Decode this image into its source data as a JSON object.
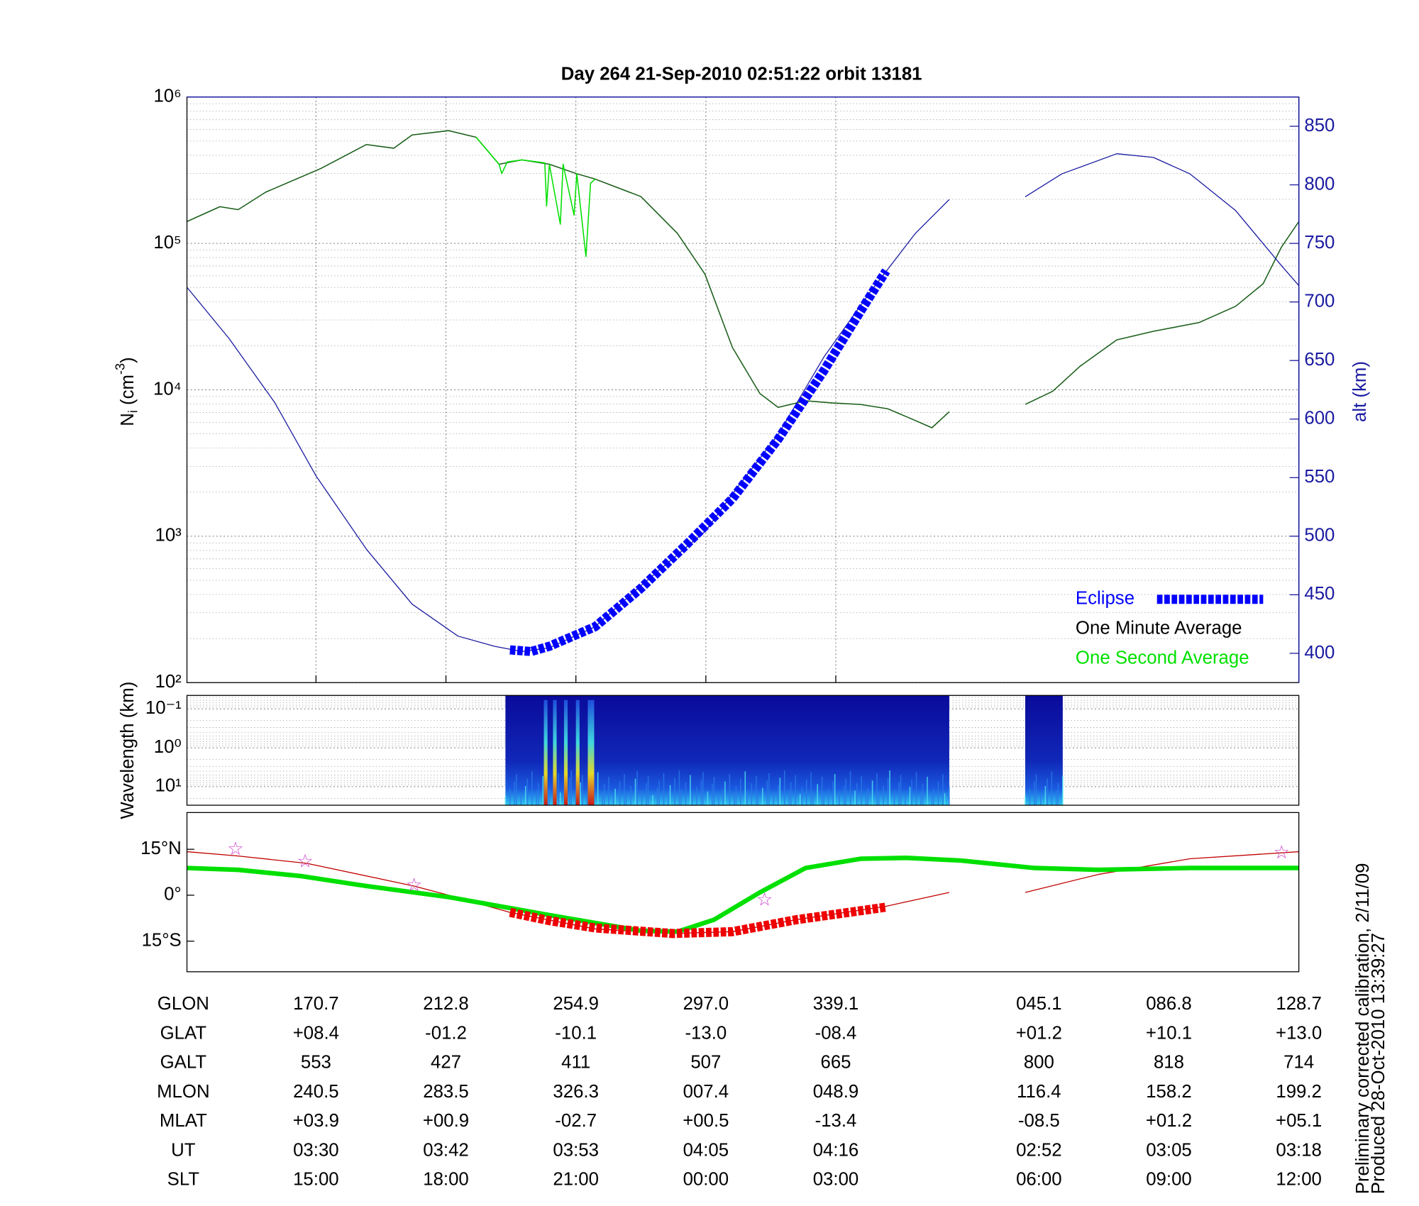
{
  "title": "Day 264  21-Sep-2010 02:51:22   orbit 13181",
  "chart_data": [
    {
      "type": "line",
      "ylabel": {
        "base": "N",
        "sub": "i",
        "unit": "(cm",
        "sup": "-3",
        "end": ")"
      },
      "y2label": "alt (km)",
      "xlim": [
        0,
        1215
      ],
      "xticks": [
        141,
        283,
        425,
        567,
        709
      ],
      "ylim": [
        100,
        1000000
      ],
      "ylog": true,
      "yticks": [
        {
          "value": 100,
          "label": "10²"
        },
        {
          "value": 1000,
          "label": "10³"
        },
        {
          "value": 10000,
          "label": "10⁴"
        },
        {
          "value": 100000,
          "label": "10⁵"
        },
        {
          "value": 1000000,
          "label": "10⁶"
        }
      ],
      "y2lim": [
        375,
        875
      ],
      "y2ticks": [
        400,
        450,
        500,
        550,
        600,
        650,
        700,
        750,
        800,
        850
      ],
      "grid": true,
      "legend": "lower right",
      "series": [
        {
          "name": "Eclipse",
          "color": "#0000ff",
          "legend_color": "#0000ff",
          "legend_sample": true,
          "axis": "y2",
          "width": 10,
          "dash": "6 2",
          "x": [
            353,
            376,
            396,
            446,
            496,
            546,
            596,
            646,
            696,
            736,
            764
          ],
          "values": [
            403,
            401.6,
            406,
            422.7,
            455.5,
            493,
            532,
            582.8,
            641.4,
            692,
            726.6
          ]
        },
        {
          "name": "One Minute Average",
          "color": "#1a5e1a",
          "legend_color": "#000000",
          "width": 1.2,
          "x": [
            0,
            36,
            56,
            86,
            146,
            196,
            226,
            246,
            286,
            316,
            341,
            366,
            396,
            426,
            446,
            496,
            536,
            566,
            596,
            626,
            646,
            676,
            706,
            736,
            766,
            796,
            814,
            833,
            875,
            916,
            946,
            976,
            1016,
            1056,
            1106,
            1146,
            1176,
            1196,
            1215
          ],
          "values": [
            141000,
            178000,
            170000,
            224000,
            324000,
            473000,
            447000,
            550000,
            589000,
            531000,
            347000,
            372000,
            347000,
            299000,
            275000,
            209000,
            117000,
            61700,
            19500,
            9440,
            7590,
            8410,
            8130,
            7940,
            7410,
            6170,
            5500,
            7080,
            null,
            7940,
            9770,
            14500,
            21900,
            25100,
            28800,
            37200,
            53100,
            94400,
            141000
          ]
        },
        {
          "name": "One Second Average",
          "color": "#00e000",
          "legend_color": "#00e000",
          "width": 1.2,
          "x": [
            316,
            341,
            344,
            350,
            366,
            391,
            393,
            396,
            408,
            411,
            423,
            426,
            436,
            441,
            446
          ],
          "values": [
            531000,
            347000,
            300000,
            360000,
            372000,
            355000,
            180000,
            347000,
            135000,
            347000,
            156000,
            299000,
            81300,
            257000,
            275000
          ]
        },
        {
          "color": "#1a1aa0",
          "axis": "y2",
          "width": 1,
          "x": [
            0,
            46,
            96,
            141,
            196,
            246,
            296,
            336,
            366,
            396,
            446,
            496,
            567,
            596,
            646,
            696,
            746,
            796,
            833,
            875,
            916,
            956,
            1016,
            1056,
            1096,
            1146,
            1196,
            1215
          ],
          "values": [
            712.5,
            668.8,
            614,
            551.6,
            489,
            442,
            414.8,
            406,
            401.6,
            404.7,
            422.7,
            457.8,
            504.7,
            536,
            586.7,
            653,
            707.8,
            758.6,
            787.5,
            null,
            789.8,
            809.4,
            826.6,
            823.4,
            809.4,
            778,
            731,
            714
          ]
        }
      ]
    },
    {
      "type": "spectrogram",
      "ylabel": "Wavelength (km)",
      "xlim": [
        0,
        1215
      ],
      "ylim": [
        0.045,
        30
      ],
      "ylog": true,
      "yinverted": true,
      "grid": true,
      "yticks": [
        {
          "value": 0.1,
          "label": "10⁻¹"
        },
        {
          "value": 1,
          "label": "10⁰"
        },
        {
          "value": 10,
          "label": "10¹"
        }
      ],
      "coverage": [
        [
          348,
          833
        ],
        [
          916,
          957
        ]
      ]
    },
    {
      "type": "line",
      "xlim": [
        0,
        1215
      ],
      "ylim": [
        -25,
        27
      ],
      "yticks": [
        {
          "value": 15,
          "label": "15°N"
        },
        {
          "value": 0,
          "label": "0°"
        },
        {
          "value": -15,
          "label": "15°S"
        }
      ],
      "series": [
        {
          "color": "#c00000",
          "width": 1,
          "x": [
            0,
            56,
            131,
            248,
            286,
            353,
            446,
            531,
            596,
            666,
            764,
            833,
            875,
            916,
            996,
            1096,
            1215
          ],
          "values": [
            14.2,
            12.8,
            10.4,
            3,
            0,
            -5.6,
            -11,
            -12.5,
            -11.9,
            -8,
            -3.6,
            0.9,
            null,
            0.9,
            6.8,
            11.9,
            14.2
          ]
        },
        {
          "color": "#00e000",
          "width": 5,
          "x": [
            0,
            56,
            126,
            196,
            286,
            396,
            496,
            536,
            576,
            626,
            676,
            736,
            786,
            846,
            926,
            996,
            1096,
            1215
          ],
          "values": [
            8.9,
            8.3,
            6.2,
            3,
            -0.6,
            -6.5,
            -11.6,
            -11.9,
            -8,
            0.9,
            8.9,
            11.9,
            12.2,
            11.3,
            8.9,
            8.3,
            8.9,
            8.9
          ]
        },
        {
          "color": "#ee0000",
          "width": 10,
          "dash": "6 2",
          "x": [
            353,
            396,
            446,
            531,
            596,
            666,
            764
          ],
          "values": [
            -5.6,
            -8.3,
            -10.7,
            -12.5,
            -11.9,
            -8,
            -3.9
          ]
        },
        {
          "color": "#cc44cc",
          "marker": "star",
          "x": [
            53,
            129,
            248,
            631,
            1196
          ],
          "values": [
            14.8,
            10.7,
            3,
            -1.8,
            13.6
          ]
        }
      ]
    }
  ],
  "table": {
    "rows": [
      {
        "label": "GLON",
        "cells": [
          "170.7",
          "212.8",
          "254.9",
          "297.0",
          "339.1",
          "045.1",
          "086.8",
          "128.7"
        ]
      },
      {
        "label": "GLAT",
        "cells": [
          "+08.4",
          "-01.2",
          "-10.1",
          "-13.0",
          "-08.4",
          "+01.2",
          "+10.1",
          "+13.0"
        ]
      },
      {
        "label": "GALT",
        "cells": [
          "553",
          "427",
          "411",
          "507",
          "665",
          "800",
          "818",
          "714"
        ]
      },
      {
        "label": "MLON",
        "cells": [
          "240.5",
          "283.5",
          "326.3",
          "007.4",
          "048.9",
          "116.4",
          "158.2",
          "199.2"
        ]
      },
      {
        "label": "MLAT",
        "cells": [
          "+03.9",
          "+00.9",
          "-02.7",
          "+00.5",
          "-13.4",
          "-08.5",
          "+01.2",
          "+05.1"
        ]
      },
      {
        "label": "UT",
        "cells": [
          "03:30",
          "03:42",
          "03:53",
          "04:05",
          "04:16",
          "02:52",
          "03:05",
          "03:18"
        ]
      },
      {
        "label": "SLT",
        "cells": [
          "15:00",
          "18:00",
          "21:00",
          "00:00",
          "03:00",
          "06:00",
          "09:00",
          "12:00"
        ]
      }
    ]
  },
  "footnote": [
    "Preliminary corrected calibration, 2/11/09",
    "Produced 28-Oct-2010 13:39:27"
  ]
}
